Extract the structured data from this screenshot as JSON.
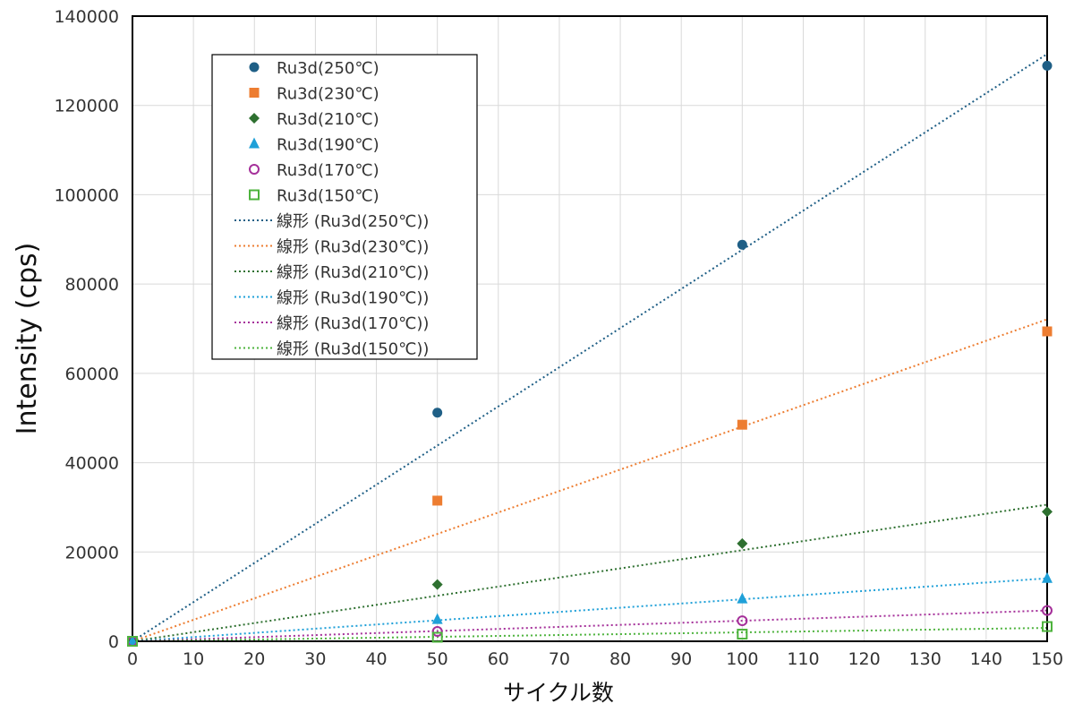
{
  "chart_data": {
    "type": "scatter",
    "xlabel": "サイクル数",
    "ylabel": "Intensity (cps)",
    "xlim": [
      0,
      150
    ],
    "ylim": [
      0,
      140000
    ],
    "x_ticks": [
      "0",
      "10",
      "20",
      "30",
      "40",
      "50",
      "60",
      "70",
      "80",
      "90",
      "100",
      "110",
      "120",
      "130",
      "140",
      "150"
    ],
    "y_ticks": [
      "0",
      "20000",
      "40000",
      "60000",
      "80000",
      "100000",
      "120000",
      "140000"
    ],
    "grid": true,
    "legend_position": "top-left",
    "series": [
      {
        "name": "Ru3d(250℃)",
        "color": "#1f5f86",
        "marker": "circle-filled",
        "points": [
          [
            0,
            0
          ],
          [
            50,
            51200
          ],
          [
            100,
            88800
          ],
          [
            150,
            128900
          ]
        ]
      },
      {
        "name": "Ru3d(230℃)",
        "color": "#ed7d31",
        "marker": "square-filled",
        "points": [
          [
            0,
            0
          ],
          [
            50,
            31500
          ],
          [
            100,
            48500
          ],
          [
            150,
            69400
          ]
        ]
      },
      {
        "name": "Ru3d(210℃)",
        "color": "#2e7030",
        "marker": "diamond-filled",
        "points": [
          [
            0,
            0
          ],
          [
            50,
            12700
          ],
          [
            100,
            21900
          ],
          [
            150,
            29000
          ]
        ]
      },
      {
        "name": "Ru3d(190℃)",
        "color": "#1fa0d8",
        "marker": "triangle-filled",
        "points": [
          [
            0,
            0
          ],
          [
            50,
            4900
          ],
          [
            100,
            9500
          ],
          [
            150,
            14100
          ]
        ]
      },
      {
        "name": "Ru3d(170℃)",
        "color": "#a5309a",
        "marker": "circle-open",
        "points": [
          [
            0,
            0
          ],
          [
            50,
            2200
          ],
          [
            100,
            4600
          ],
          [
            150,
            6900
          ]
        ]
      },
      {
        "name": "Ru3d(150℃)",
        "color": "#4db33d",
        "marker": "square-open",
        "points": [
          [
            0,
            0
          ],
          [
            50,
            900
          ],
          [
            100,
            1600
          ],
          [
            150,
            3300
          ]
        ]
      }
    ],
    "trendlines": [
      {
        "name": "線形 (Ru3d(250℃))",
        "color": "#1f5f86",
        "slope": 876.7
      },
      {
        "name": "線形 (Ru3d(230℃))",
        "color": "#ed7d31",
        "slope": 480.7
      },
      {
        "name": "線形 (Ru3d(210℃))",
        "color": "#2e7030",
        "slope": 204.0
      },
      {
        "name": "線形 (Ru3d(190℃))",
        "color": "#1fa0d8",
        "slope": 94.0
      },
      {
        "name": "線形 (Ru3d(170℃))",
        "color": "#a5309a",
        "slope": 46.0
      },
      {
        "name": "線形 (Ru3d(150℃))",
        "color": "#4db33d",
        "slope": 20.0
      }
    ]
  }
}
